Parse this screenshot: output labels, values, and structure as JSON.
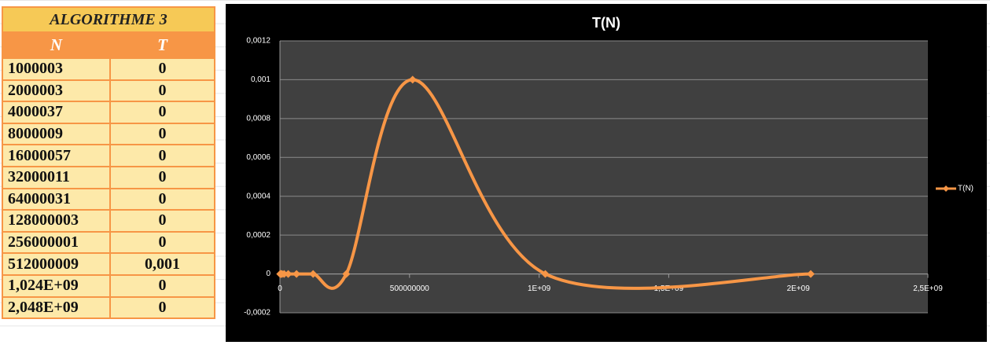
{
  "table": {
    "title": "ALGORITHME 3",
    "columns": [
      "N",
      "T"
    ],
    "rows": [
      [
        "1000003",
        "0"
      ],
      [
        "2000003",
        "0"
      ],
      [
        "4000037",
        "0"
      ],
      [
        "8000009",
        "0"
      ],
      [
        "16000057",
        "0"
      ],
      [
        "32000011",
        "0"
      ],
      [
        "64000031",
        "0"
      ],
      [
        "128000003",
        "0"
      ],
      [
        "256000001",
        "0"
      ],
      [
        "512000009",
        "0,001"
      ],
      [
        "1,024E+09",
        "0"
      ],
      [
        "2,048E+09",
        "0"
      ]
    ]
  },
  "chart_data": {
    "type": "line",
    "title": "T(N)",
    "x": [
      1000003,
      2000003,
      4000037,
      8000009,
      16000057,
      32000011,
      64000031,
      128000003,
      256000001,
      512000009,
      1024000000,
      2048000000
    ],
    "series": [
      {
        "name": "T(N)",
        "color": "#f79646",
        "values": [
          0,
          0,
          0,
          0,
          0,
          0,
          0,
          0,
          0,
          0.001,
          0,
          0
        ]
      }
    ],
    "xlim": [
      0,
      2500000000
    ],
    "xticks": [
      0,
      500000000,
      {
        "value": 1000000000,
        "label": "1E+09"
      },
      {
        "value": 1500000000,
        "label": "1,5E+09"
      },
      {
        "value": 2000000000,
        "label": "2E+09"
      },
      {
        "value": 2500000000,
        "label": "2,5E+09"
      }
    ],
    "ylim": [
      -0.0002,
      0.0012
    ],
    "yticks": [
      {
        "value": -0.0002,
        "label": "-0,0002"
      },
      0,
      {
        "value": 0.0002,
        "label": "0,0002"
      },
      {
        "value": 0.0004,
        "label": "0,0004"
      },
      {
        "value": 0.0006,
        "label": "0,0006"
      },
      {
        "value": 0.0008,
        "label": "0,0008"
      },
      {
        "value": 0.001,
        "label": "0,001"
      },
      {
        "value": 0.0012,
        "label": "0,0012"
      }
    ],
    "grid": true,
    "smooth": true,
    "legend": "right"
  }
}
